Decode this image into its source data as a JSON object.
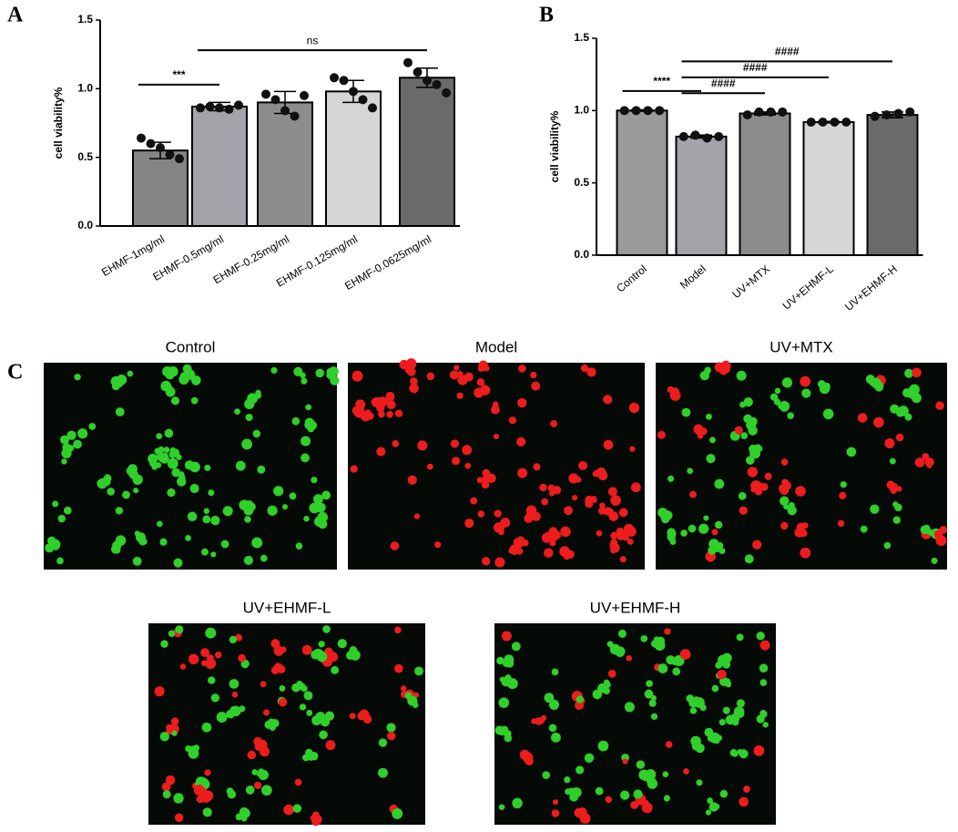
{
  "chart_data": [
    {
      "type": "bar",
      "panel": "A",
      "ylabel": "cell viability%",
      "categories": [
        "EHMF-1mg/ml",
        "EHMF-0.5mg/ml",
        "EHMF-0.25mg/ml",
        "EHMF-0.125mg/ml",
        "EHMF-0.0625mg/ml"
      ],
      "values": [
        0.55,
        0.87,
        0.9,
        0.98,
        1.08
      ],
      "errors": [
        0.06,
        0.03,
        0.08,
        0.08,
        0.07
      ],
      "points": [
        [
          0.64,
          0.6,
          0.57,
          0.52,
          0.49
        ],
        [
          0.86,
          0.87,
          0.86,
          0.85,
          0.88
        ],
        [
          0.96,
          0.92,
          0.84,
          0.8,
          0.95
        ],
        [
          1.08,
          1.06,
          0.98,
          0.92,
          0.86
        ],
        [
          1.19,
          1.12,
          1.06,
          1.03,
          0.97
        ]
      ],
      "colors": [
        "#858585",
        "#a3a3aa",
        "#8c8c8c",
        "#d6d6d6",
        "#6a6a6a"
      ],
      "ylim": [
        0,
        1.5
      ],
      "yticks": [
        {
          "value": 0,
          "label": "0.0"
        },
        0.5,
        {
          "value": 1,
          "label": "1.0"
        },
        1.5
      ],
      "annotations": [
        {
          "text": "***",
          "from": 0,
          "to": 1
        },
        {
          "text": "ns",
          "from": 1,
          "to": 4
        }
      ]
    },
    {
      "type": "bar",
      "panel": "B",
      "ylabel": "cell viability%",
      "categories": [
        "Control",
        "Model",
        "UV+MTX",
        "UV+EHMF-L",
        "UV+EHMF-H"
      ],
      "values": [
        1.0,
        0.82,
        0.98,
        0.92,
        0.97
      ],
      "errors": [
        0.005,
        0.01,
        0.01,
        0.005,
        0.02
      ],
      "points": [
        [
          1,
          1,
          1,
          1
        ],
        [
          0.82,
          0.83,
          0.81,
          0.82
        ],
        [
          0.97,
          0.99,
          0.99,
          0.99
        ],
        [
          0.92,
          0.92,
          0.92,
          0.92
        ],
        [
          0.96,
          0.97,
          0.98,
          0.99
        ]
      ],
      "colors": [
        "#9a9a9a",
        "#a3a3aa",
        "#8c8c8c",
        "#d6d6d6",
        "#6a6a6a"
      ],
      "ylim": [
        0,
        1.5
      ],
      "yticks": [
        {
          "value": 0,
          "label": "0.0"
        },
        0.5,
        {
          "value": 1,
          "label": "1.0"
        },
        1.5
      ],
      "annotations": [
        {
          "text": "****",
          "from": 0,
          "to": 1
        },
        {
          "text": "####",
          "from": 1,
          "to": 2
        },
        {
          "text": "####",
          "from": 1,
          "to": 3
        },
        {
          "text": "####",
          "from": 1,
          "to": 4
        }
      ]
    }
  ],
  "panel_c": {
    "label": "C",
    "images": [
      "Control",
      "Model",
      "UV+MTX",
      "UV+EHMF-L",
      "UV+EHMF-H"
    ]
  }
}
